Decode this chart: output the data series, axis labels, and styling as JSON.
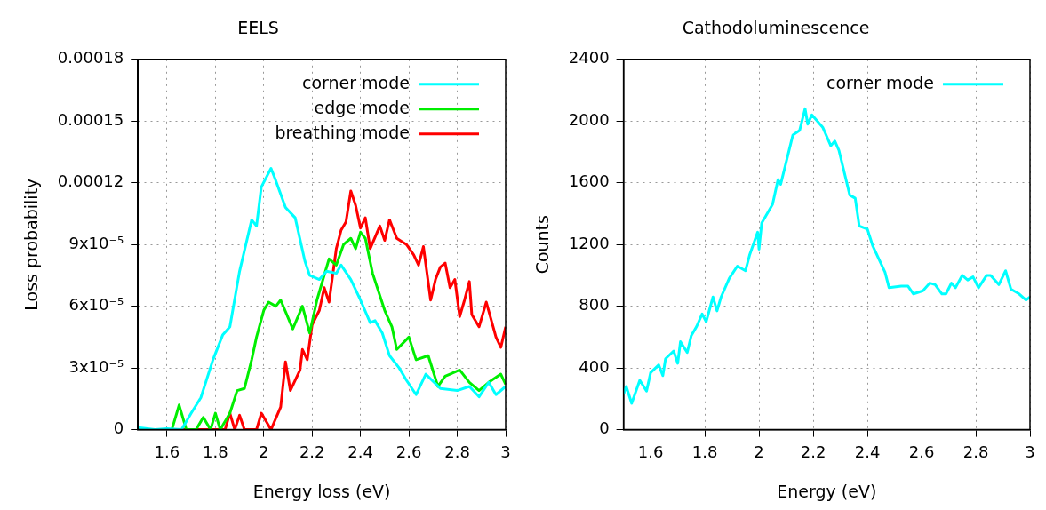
{
  "chart_data": [
    {
      "type": "line",
      "title": "EELS",
      "xlabel": "Energy loss (eV)",
      "ylabel": "Loss probability",
      "xlim": [
        1.48,
        3
      ],
      "xticks": [
        1.6,
        1.8,
        2,
        2.2,
        2.4,
        2.6,
        2.8,
        3
      ],
      "ylim": [
        0,
        0.00018
      ],
      "yticks": [
        0,
        {
          "value": 3e-05,
          "label": "3x10⁻⁵"
        },
        {
          "value": 6e-05,
          "label": "6x10⁻⁵"
        },
        {
          "value": 9e-05,
          "label": "9x10⁻⁵"
        },
        0.00012,
        0.00015,
        0.00018
      ],
      "grid": true,
      "legend": "top right",
      "marker": "none",
      "line_style": "solid",
      "series": [
        {
          "name": "corner mode",
          "color": "#00ffff",
          "x": [
            1.48,
            1.55,
            1.6,
            1.66,
            1.7,
            1.74,
            1.79,
            1.83,
            1.86,
            1.9,
            1.95,
            1.97,
            1.99,
            2.03,
            2.05,
            2.09,
            2.13,
            2.17,
            2.19,
            2.23,
            2.26,
            2.3,
            2.32,
            2.36,
            2.4,
            2.44,
            2.46,
            2.49,
            2.52,
            2.56,
            2.59,
            2.63,
            2.67,
            2.73,
            2.8,
            2.85,
            2.89,
            2.93,
            2.96,
            3.0
          ],
          "values": [
            1e-06,
            0,
            5e-07,
            0,
            8e-06,
            1.56e-05,
            3.4e-05,
            4.6e-05,
            5e-05,
            7.7e-05,
            0.000102,
            9.9e-05,
            0.000118,
            0.000127,
            0.000121,
            0.000108,
            0.000103,
            8.2e-05,
            7.5e-05,
            7.3e-05,
            7.7e-05,
            7.6e-05,
            8e-05,
            7.3e-05,
            6.3e-05,
            5.2e-05,
            5.3e-05,
            4.7e-05,
            3.6e-05,
            3e-05,
            2.4e-05,
            1.7e-05,
            2.7e-05,
            2e-05,
            1.9e-05,
            2.1e-05,
            1.6e-05,
            2.3e-05,
            1.7e-05,
            2.1e-05
          ]
        },
        {
          "name": "edge mode",
          "color": "#00ee00",
          "x": [
            1.48,
            1.62,
            1.65,
            1.68,
            1.72,
            1.75,
            1.78,
            1.8,
            1.82,
            1.86,
            1.89,
            1.92,
            1.95,
            1.97,
            2.0,
            2.02,
            2.05,
            2.07,
            2.12,
            2.16,
            2.19,
            2.22,
            2.27,
            2.3,
            2.33,
            2.36,
            2.38,
            2.4,
            2.42,
            2.45,
            2.5,
            2.53,
            2.55,
            2.6,
            2.63,
            2.68,
            2.72,
            2.75,
            2.81,
            2.85,
            2.89,
            2.93,
            2.98,
            3.0
          ],
          "values": [
            0,
            0,
            1.2e-05,
            0,
            0,
            6e-06,
            0,
            8e-06,
            0,
            8e-06,
            1.9e-05,
            2e-05,
            3.4e-05,
            4.5e-05,
            5.8e-05,
            6.2e-05,
            6e-05,
            6.3e-05,
            4.9e-05,
            6e-05,
            4.7e-05,
            6.3e-05,
            8.3e-05,
            8e-05,
            9e-05,
            9.3e-05,
            8.8e-05,
            9.6e-05,
            9.3e-05,
            7.6e-05,
            5.8e-05,
            5e-05,
            3.9e-05,
            4.5e-05,
            3.4e-05,
            3.6e-05,
            2.1e-05,
            2.6e-05,
            2.9e-05,
            2.3e-05,
            1.9e-05,
            2.3e-05,
            2.7e-05,
            2.2e-05
          ]
        },
        {
          "name": "breathing mode",
          "color": "#ff0000",
          "x": [
            1.48,
            1.84,
            1.86,
            1.88,
            1.9,
            1.92,
            1.97,
            1.99,
            2.01,
            2.03,
            2.07,
            2.09,
            2.11,
            2.15,
            2.16,
            2.18,
            2.2,
            2.23,
            2.25,
            2.27,
            2.3,
            2.32,
            2.34,
            2.36,
            2.38,
            2.4,
            2.42,
            2.44,
            2.48,
            2.5,
            2.52,
            2.55,
            2.59,
            2.62,
            2.64,
            2.66,
            2.69,
            2.71,
            2.73,
            2.75,
            2.77,
            2.79,
            2.81,
            2.83,
            2.85,
            2.86,
            2.89,
            2.92,
            2.96,
            2.98,
            3.0
          ],
          "values": [
            0,
            0,
            8e-06,
            0,
            7e-06,
            0,
            0,
            8e-06,
            4e-06,
            0,
            1.1e-05,
            3.3e-05,
            1.9e-05,
            2.9e-05,
            3.9e-05,
            3.4e-05,
            5.1e-05,
            5.8e-05,
            6.9e-05,
            6.2e-05,
            8.8e-05,
            9.7e-05,
            0.000101,
            0.000116,
            0.000109,
            9.8e-05,
            0.000103,
            8.8e-05,
            9.9e-05,
            9.2e-05,
            0.000102,
            9.3e-05,
            9e-05,
            8.5e-05,
            8e-05,
            8.9e-05,
            6.3e-05,
            7.3e-05,
            7.9e-05,
            8.1e-05,
            6.9e-05,
            7.3e-05,
            5.5e-05,
            6.3e-05,
            7.2e-05,
            5.6e-05,
            5e-05,
            6.2e-05,
            4.5e-05,
            4e-05,
            5e-05
          ]
        }
      ]
    },
    {
      "type": "line",
      "title": "Cathodoluminescence",
      "xlabel": "Energy (eV)",
      "ylabel": "Counts",
      "xlim": [
        1.5,
        3
      ],
      "xticks": [
        1.6,
        1.8,
        2,
        2.2,
        2.4,
        2.6,
        2.8,
        3
      ],
      "ylim": [
        0,
        2400
      ],
      "yticks": [
        0,
        400,
        800,
        1200,
        1600,
        2000,
        2400
      ],
      "grid": true,
      "legend": "top right",
      "marker": "none",
      "line_style": "solid",
      "series": [
        {
          "name": "corner mode",
          "color": "#00ffff",
          "x": [
            1.5,
            1.51,
            1.53,
            1.56,
            1.585,
            1.6,
            1.63,
            1.645,
            1.655,
            1.685,
            1.7,
            1.71,
            1.735,
            1.75,
            1.77,
            1.79,
            1.805,
            1.83,
            1.845,
            1.86,
            1.89,
            1.92,
            1.95,
            1.965,
            1.995,
            2.0,
            2.01,
            2.05,
            2.07,
            2.08,
            2.125,
            2.15,
            2.17,
            2.18,
            2.195,
            2.235,
            2.265,
            2.28,
            2.295,
            2.335,
            2.355,
            2.37,
            2.4,
            2.42,
            2.465,
            2.48,
            2.525,
            2.55,
            2.57,
            2.605,
            2.63,
            2.65,
            2.675,
            2.69,
            2.71,
            2.725,
            2.75,
            2.77,
            2.79,
            2.81,
            2.84,
            2.855,
            2.885,
            2.91,
            2.93,
            2.96,
            2.985,
            3.0
          ],
          "values": [
            230,
            280,
            170,
            320,
            250,
            370,
            420,
            350,
            460,
            510,
            430,
            570,
            500,
            610,
            670,
            750,
            700,
            860,
            770,
            860,
            980,
            1060,
            1030,
            1130,
            1280,
            1170,
            1340,
            1460,
            1620,
            1590,
            1910,
            1940,
            2080,
            1980,
            2040,
            1960,
            1840,
            1870,
            1810,
            1520,
            1500,
            1320,
            1300,
            1190,
            1020,
            920,
            930,
            930,
            880,
            900,
            950,
            940,
            880,
            880,
            950,
            920,
            1000,
            970,
            990,
            920,
            1000,
            1000,
            940,
            1030,
            910,
            880,
            840,
            860
          ]
        }
      ]
    }
  ]
}
